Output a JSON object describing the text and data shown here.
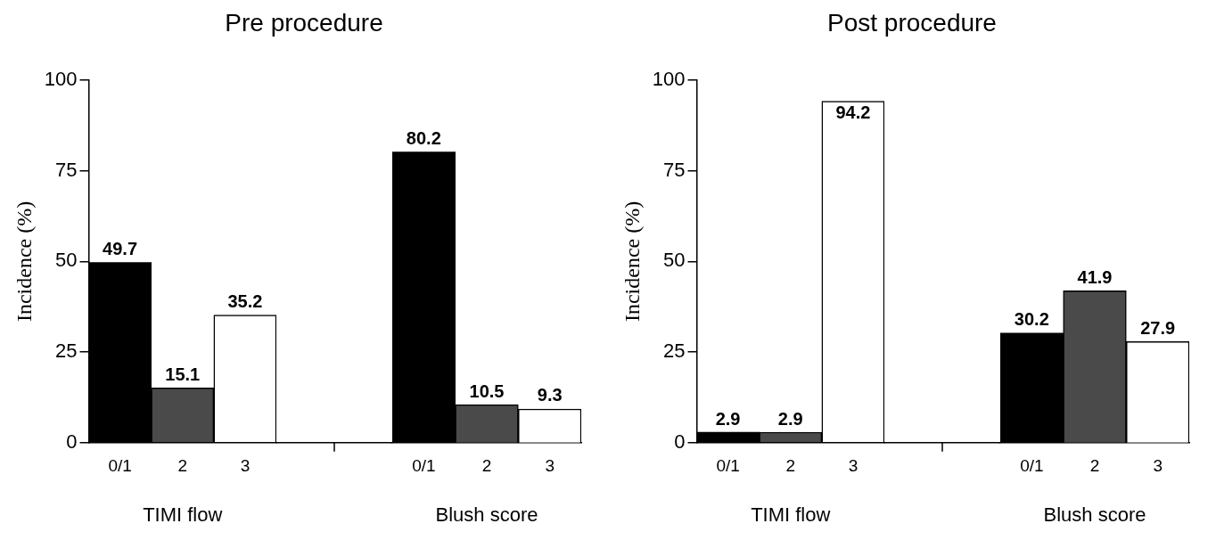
{
  "chart_data": [
    {
      "type": "bar",
      "title": "Pre procedure",
      "ylabel": "Incidence (%)",
      "xlabel": "TIMI flow",
      "categories": [
        "0/1",
        "2",
        "3"
      ],
      "values": [
        49.7,
        15.1,
        35.2
      ],
      "colors": [
        "#000000",
        "#4a4a4a",
        "#ffffff"
      ],
      "ylim": [
        0,
        100
      ],
      "yticks": [
        0,
        25,
        50,
        75,
        100
      ],
      "grid": false,
      "legend": false,
      "data_labels": true
    },
    {
      "type": "bar",
      "xlabel": "Blush score",
      "categories": [
        "0/1",
        "2",
        "3"
      ],
      "values": [
        80.2,
        10.5,
        9.3
      ],
      "colors": [
        "#000000",
        "#4a4a4a",
        "#ffffff"
      ],
      "ylim": [
        0,
        100
      ],
      "yticks": [
        0,
        25,
        50,
        75,
        100
      ],
      "tick_labels": "x",
      "grid": false,
      "legend": false,
      "data_labels": true
    },
    {
      "type": "bar",
      "title": "Post procedure",
      "ylabel": "Incidence (%)",
      "xlabel": "TIMI flow",
      "categories": [
        "0/1",
        "2",
        "3"
      ],
      "values": [
        2.9,
        2.9,
        94.2
      ],
      "colors": [
        "#000000",
        "#4a4a4a",
        "#ffffff"
      ],
      "ylim": [
        0,
        100
      ],
      "yticks": [
        0,
        25,
        50,
        75,
        100
      ],
      "grid": false,
      "legend": false,
      "data_labels": true
    },
    {
      "type": "bar",
      "xlabel": "Blush score",
      "categories": [
        "0/1",
        "2",
        "3"
      ],
      "values": [
        30.2,
        41.9,
        27.9
      ],
      "colors": [
        "#000000",
        "#4a4a4a",
        "#ffffff"
      ],
      "ylim": [
        0,
        100
      ],
      "yticks": [
        0,
        25,
        50,
        75,
        100
      ],
      "tick_labels": "x",
      "grid": false,
      "legend": false,
      "data_labels": true
    }
  ]
}
